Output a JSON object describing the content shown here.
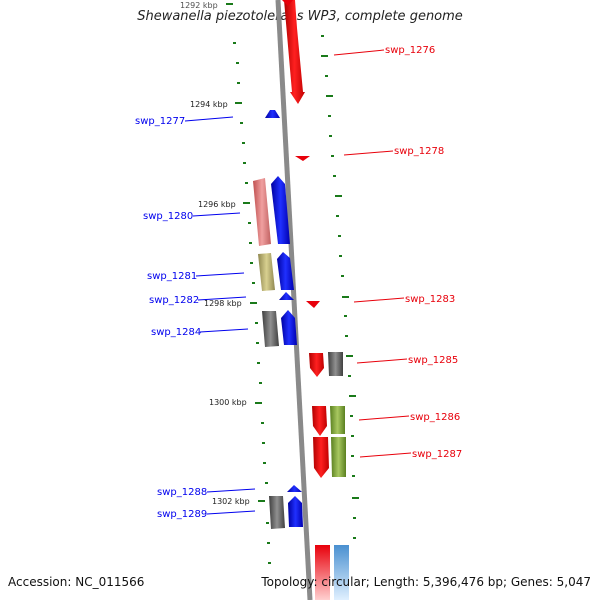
{
  "title": "Shewanella piezotolerans WP3, complete genome",
  "footer": {
    "accession": "Accession: NC_011566",
    "topology": "Topology: circular; Length: 5,396,476 bp; Genes: 5,047"
  },
  "kbp_markers": [
    "1292 kbp",
    "1294 kbp",
    "1296 kbp",
    "1298 kbp",
    "1300 kbp",
    "1302 kbp"
  ],
  "gene_labels": [
    {
      "name": "swp_1276",
      "color": "#e8000b"
    },
    {
      "name": "swp_1277",
      "color": "#0000ee"
    },
    {
      "name": "swp_1278",
      "color": "#e8000b"
    },
    {
      "name": "swp_1280",
      "color": "#0000ee"
    },
    {
      "name": "swp_1281",
      "color": "#0000ee"
    },
    {
      "name": "swp_1282",
      "color": "#0000ee"
    },
    {
      "name": "swp_1283",
      "color": "#e8000b"
    },
    {
      "name": "swp_1284",
      "color": "#0000ee"
    },
    {
      "name": "swp_1285",
      "color": "#e8000b"
    },
    {
      "name": "swp_1286",
      "color": "#e8000b"
    },
    {
      "name": "swp_1287",
      "color": "#e8000b"
    },
    {
      "name": "swp_1288",
      "color": "#0000ee"
    },
    {
      "name": "swp_1289",
      "color": "#0000ee"
    }
  ],
  "colors": {
    "forward_strand": "#e8000b",
    "reverse_strand": "#0000ee",
    "tick": "#1a7a1a",
    "backbone": "#8a8a8a",
    "pink_feature": "#e88080",
    "olive_feature": "#b8b070",
    "gray_feature": "#606060",
    "green_feature": "#7aa030",
    "lightblue_feature": "#80b0e0"
  }
}
